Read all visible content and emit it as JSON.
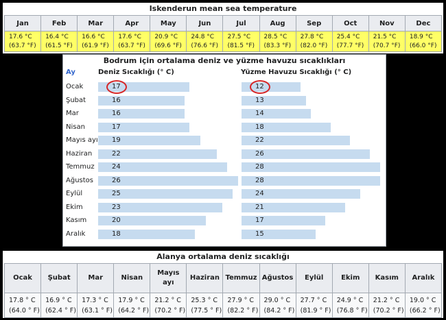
{
  "table1": {
    "title": "Iskenderun mean sea temperature",
    "months": [
      "Jan",
      "Feb",
      "Mar",
      "Apr",
      "May",
      "Jun",
      "Jul",
      "Aug",
      "Sep",
      "Oct",
      "Nov",
      "Dec"
    ],
    "celsius": [
      "17.6 °C",
      "16.4 °C",
      "16.6 °C",
      "17.6 °C",
      "20.9 °C",
      "24.8 °C",
      "27.5 °C",
      "28.5 °C",
      "27.8 °C",
      "25.4 °C",
      "21.5 °C",
      "18.9 °C"
    ],
    "fahrenheit": [
      "(63.7 °F)",
      "(61.5 °F)",
      "(61.9 °F)",
      "(63.7 °F)",
      "(69.6 °F)",
      "(76.6 °F)",
      "(81.5 °F)",
      "(83.3 °F)",
      "(82.0 °F)",
      "(77.7 °F)",
      "(70.7 °F)",
      "(66.0 °F)"
    ],
    "highlight_color": "#ffff66"
  },
  "table2": {
    "title": "Bodrum için ortalama deniz ve yüzme havuzu sıcaklıkları",
    "col_month": "Ay",
    "col_sea": "Deniz Sıcaklığı (° C)",
    "col_pool": "Yüzme Havuzu Sıcaklığı (° C)",
    "months": [
      "Ocak",
      "Şubat",
      "Mar",
      "Nisan",
      "Mayıs ayı",
      "Haziran",
      "Temmuz",
      "Ağustos",
      "Eylül",
      "Ekim",
      "Kasım",
      "Aralık"
    ],
    "sea": [
      17,
      16,
      16,
      17,
      19,
      22,
      24,
      26,
      25,
      23,
      20,
      18
    ],
    "pool": [
      12,
      13,
      14,
      18,
      22,
      26,
      28,
      28,
      24,
      21,
      17,
      15
    ],
    "bar_color": "#c6dbef",
    "circle_color": "#d62728",
    "circled_row": 0
  },
  "table3": {
    "title": "Alanya ortalama deniz sıcaklığı",
    "months": [
      "Ocak",
      "Şubat",
      "Mar",
      "Nisan",
      "Mayıs ayı",
      "Haziran",
      "Temmuz",
      "Ağustos",
      "Eylül",
      "Ekim",
      "Kasım",
      "Aralık"
    ],
    "celsius": [
      "17.8 ° C",
      "16.9 ° C",
      "17.3 ° C",
      "17.9 ° C",
      "21.2 ° C",
      "25.3 ° C",
      "27.9 ° C",
      "29.0 ° C",
      "27.7 ° C",
      "24.9 ° C",
      "21.2 ° C",
      "19.0 ° C"
    ],
    "fahrenheit": [
      "(64.0 ° F)",
      "(62.4 ° F)",
      "(63.1 ° F)",
      "(64.2 ° F)",
      "(70.2 ° F)",
      "(77.5 ° F)",
      "(82.2 ° F)",
      "(84.2 ° F)",
      "(81.9 ° F)",
      "(76.8 ° F)",
      "(70.2 ° F)",
      "(66.2 ° F)"
    ]
  }
}
